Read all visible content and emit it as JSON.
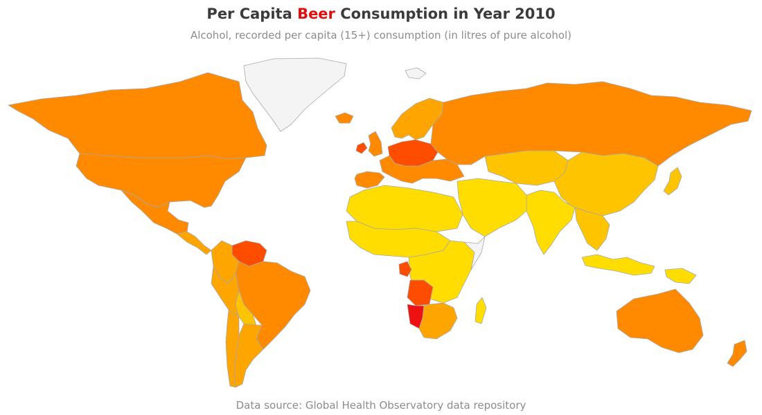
{
  "title": {
    "prefix": "Per Capita ",
    "highlight": "Beer",
    "suffix": " Consumption in Year 2010"
  },
  "subtitle": "Alcohol, recorded per capita (15+) consumption (in litres of pure alcohol)",
  "source": "Data source: Global Health Observatory data repository",
  "colors": {
    "highlight": "#e01010",
    "no_data": "#f4f4f4",
    "very_high": "#ee1111",
    "high": "#ff4d00",
    "above_avg": "#ff8a00",
    "mid": "#ffa500",
    "low_mid": "#ffc400",
    "low": "#ffdd00",
    "border": "#a8a8a8"
  },
  "regions": [
    {
      "name": "Greenland",
      "level": "no_data"
    },
    {
      "name": "Canada",
      "level": "above_avg"
    },
    {
      "name": "United States",
      "level": "above_avg"
    },
    {
      "name": "Mexico",
      "level": "above_avg"
    },
    {
      "name": "Central America",
      "level": "mid"
    },
    {
      "name": "Venezuela",
      "level": "high"
    },
    {
      "name": "Colombia",
      "level": "mid"
    },
    {
      "name": "Brazil",
      "level": "above_avg"
    },
    {
      "name": "Peru",
      "level": "mid"
    },
    {
      "name": "Bolivia",
      "level": "low_mid"
    },
    {
      "name": "Argentina",
      "level": "mid"
    },
    {
      "name": "Chile",
      "level": "mid"
    },
    {
      "name": "Iceland",
      "level": "above_avg"
    },
    {
      "name": "Ireland",
      "level": "high"
    },
    {
      "name": "United Kingdom",
      "level": "above_avg"
    },
    {
      "name": "Scandinavia",
      "level": "mid"
    },
    {
      "name": "Spain",
      "level": "above_avg"
    },
    {
      "name": "Central Europe",
      "level": "high"
    },
    {
      "name": "Eastern Europe",
      "level": "above_avg"
    },
    {
      "name": "Russia",
      "level": "above_avg"
    },
    {
      "name": "Kazakhstan",
      "level": "low_mid"
    },
    {
      "name": "China",
      "level": "low_mid"
    },
    {
      "name": "Japan",
      "level": "low_mid"
    },
    {
      "name": "India",
      "level": "low"
    },
    {
      "name": "Middle East",
      "level": "low"
    },
    {
      "name": "North Africa",
      "level": "low"
    },
    {
      "name": "Sahel",
      "level": "low"
    },
    {
      "name": "Central Africa",
      "level": "low"
    },
    {
      "name": "Somalia",
      "level": "no_data"
    },
    {
      "name": "Angola",
      "level": "high"
    },
    {
      "name": "Gabon",
      "level": "high"
    },
    {
      "name": "Namibia",
      "level": "very_high"
    },
    {
      "name": "Southern Africa",
      "level": "mid"
    },
    {
      "name": "Madagascar",
      "level": "low"
    },
    {
      "name": "Southeast Asia",
      "level": "low_mid"
    },
    {
      "name": "Indonesia",
      "level": "low"
    },
    {
      "name": "Papua New Guinea",
      "level": "low"
    },
    {
      "name": "Australia",
      "level": "above_avg"
    },
    {
      "name": "New Zealand",
      "level": "above_avg"
    },
    {
      "name": "Svalbard",
      "level": "no_data"
    }
  ]
}
